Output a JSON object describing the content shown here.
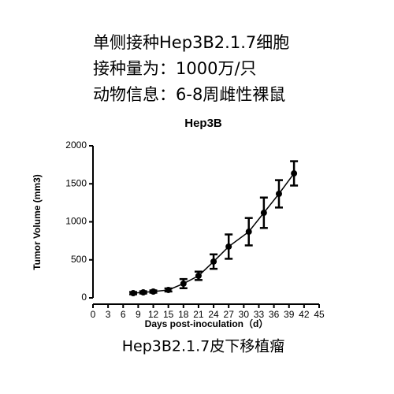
{
  "header": {
    "lines": [
      "单侧接种Hep3B2.1.7细胞",
      "接种量为：1000万/只",
      "动物信息：6-8周雌性裸鼠"
    ]
  },
  "chart_data": {
    "type": "line",
    "title": "Hep3B",
    "x_label": "Days post-inoculation（d）",
    "y_label": "Tumor Volume (mm3)",
    "x": [
      8,
      10,
      12,
      15,
      18,
      21,
      24,
      27,
      31,
      34,
      37,
      40
    ],
    "series": [
      {
        "name": "Hep3B",
        "color": "#000000",
        "values": [
          62,
          72,
          83,
          104,
          187,
          290,
          477,
          674,
          870,
          1119,
          1368,
          1637
        ],
        "errors": [
          15,
          15,
          15,
          20,
          60,
          55,
          95,
          160,
          180,
          200,
          180,
          160
        ]
      }
    ],
    "xlim": [
      0,
      45
    ],
    "xticks": [
      0,
      3,
      6,
      9,
      12,
      15,
      18,
      21,
      24,
      27,
      30,
      33,
      36,
      39,
      42,
      45
    ],
    "ylim": [
      0,
      2000
    ],
    "yticks": [
      0,
      500,
      1000,
      1500,
      2000
    ]
  },
  "caption": "Hep3B2.1.7皮下移植瘤"
}
